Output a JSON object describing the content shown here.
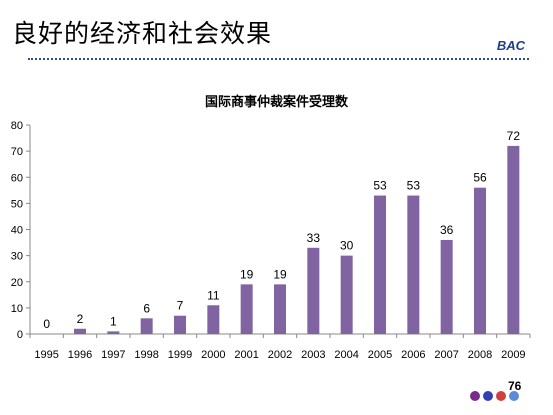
{
  "slide": {
    "title": "良好的经济和社会效果",
    "logo": "BAC",
    "page_number": "76",
    "nav_dot_colors": [
      "#7a2a8a",
      "#3040b0",
      "#d04040",
      "#5a8ad8"
    ]
  },
  "chart_data": {
    "type": "bar",
    "title": "国际商事仲裁案件受理数",
    "xlabel": "",
    "ylabel": "",
    "categories": [
      "1995",
      "1996",
      "1997",
      "1998",
      "1999",
      "2000",
      "2001",
      "2002",
      "2003",
      "2004",
      "2005",
      "2006",
      "2007",
      "2008",
      "2009"
    ],
    "values": [
      0,
      2,
      1,
      6,
      7,
      11,
      19,
      19,
      33,
      30,
      53,
      53,
      36,
      56,
      72
    ],
    "ylim": [
      0,
      80
    ],
    "yticks": [
      0,
      10,
      20,
      30,
      40,
      50,
      60,
      70,
      80
    ],
    "grid": false,
    "legend": "none",
    "bar_color": "#8064a2"
  }
}
